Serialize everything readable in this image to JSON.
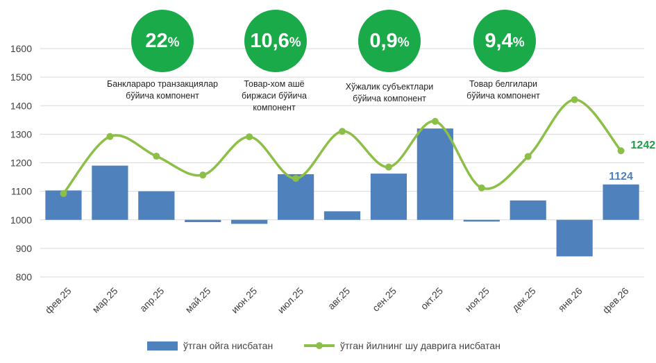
{
  "indicators": [
    {
      "value": "22",
      "unit": "%",
      "caption": [
        "Банклараро транзакциялар",
        "бўйича компонент"
      ]
    },
    {
      "value": "10,6",
      "unit": "%",
      "caption": [
        "Товар-хом ашё",
        "биржаси бўйича",
        "компонент"
      ]
    },
    {
      "value": "0,9",
      "unit": "%",
      "caption": [
        "Хўжалик субъектлари",
        "бўйича компонент"
      ]
    },
    {
      "value": "9,4",
      "unit": "%",
      "caption": [
        "Товар белгилари",
        "бўйича компонент"
      ]
    }
  ],
  "colors": {
    "bar": "#4f81bd",
    "line": "#8cbf47",
    "circle": "#1aaa4a",
    "line_label": "#1e9e48",
    "bar_label": "#4f81bd"
  },
  "chart_data": {
    "type": "bar",
    "categories": [
      "фев.25",
      "мар.25",
      "апр.25",
      "май.25",
      "июн.25",
      "июл.25",
      "авг.25",
      "сен.25",
      "окт.25",
      "ноя.25",
      "дек.25",
      "янв.26",
      "фев.26"
    ],
    "series": [
      {
        "name": "ўтган ойга нисбатан",
        "type": "bar",
        "values": [
          1103,
          1190,
          1100,
          992,
          986,
          1160,
          1030,
          1162,
          1320,
          994,
          1068,
          872,
          1124
        ]
      },
      {
        "name": "ўтган йилнинг шу даврига нисбатан",
        "type": "line",
        "values": [
          1092,
          1292,
          1223,
          1157,
          1291,
          1145,
          1310,
          1185,
          1345,
          1112,
          1222,
          1421,
          1242
        ]
      }
    ],
    "baseline": 1000,
    "ylim": [
      800,
      1600
    ],
    "yticks": [
      800,
      900,
      1000,
      1100,
      1200,
      1300,
      1400,
      1500,
      1600
    ],
    "data_labels": {
      "bar_last": "1124",
      "line_last": "1242"
    },
    "grid": true,
    "legend": "bottom"
  }
}
